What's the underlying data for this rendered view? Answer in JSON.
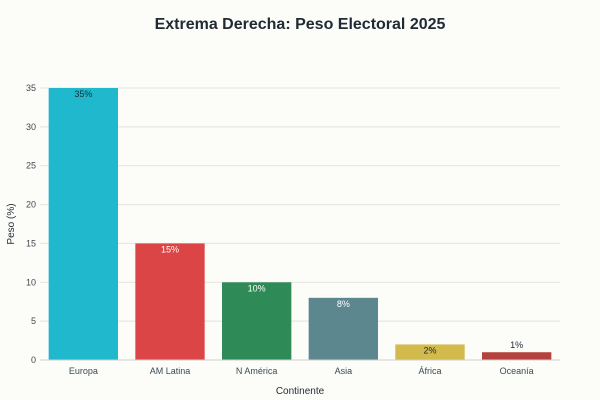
{
  "chart_data": {
    "type": "bar",
    "title": "Extrema Derecha: Peso Electoral 2025",
    "xlabel": "Continente",
    "ylabel": "Peso (%)",
    "ylim": [
      0,
      35
    ],
    "yticks": [
      0,
      5,
      10,
      15,
      20,
      25,
      30,
      35
    ],
    "grid": true,
    "categories": [
      "Europa",
      "AM Latina",
      "N América",
      "Asia",
      "África",
      "Oceanía"
    ],
    "values": [
      35,
      15,
      10,
      8,
      2,
      1
    ],
    "data_labels": [
      "35%",
      "15%",
      "10%",
      "8%",
      "2%",
      "1%"
    ],
    "colors": [
      "#1fb8cd",
      "#db4545",
      "#2e8b57",
      "#5d878f",
      "#d2ba4c",
      "#b4413c"
    ],
    "label_colors": [
      "#1f2a33",
      "#ffffff",
      "#ffffff",
      "#ffffff",
      "#1f2a33",
      "#1f2a33"
    ]
  }
}
